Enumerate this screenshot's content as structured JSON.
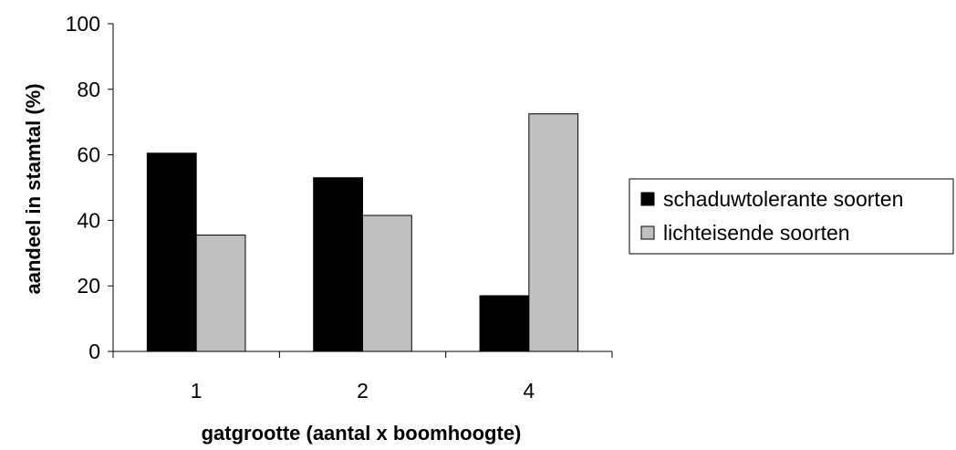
{
  "chart_data": {
    "type": "bar",
    "categories": [
      "1",
      "2",
      "4"
    ],
    "series": [
      {
        "name": "schaduwtolerante soorten",
        "values": [
          60.5,
          53,
          17
        ],
        "color": "#000000"
      },
      {
        "name": "lichteisende soorten",
        "values": [
          35.5,
          41.5,
          72.5
        ],
        "color": "#c0c0c0"
      }
    ],
    "xlabel": "gatgrootte (aantal x boomhoogte)",
    "ylabel": "aandeel in stamtal (%)",
    "ylim": [
      0,
      100
    ],
    "yticks": [
      "0",
      "20",
      "40",
      "60",
      "80",
      "100"
    ],
    "grid": false,
    "legend_position": "right"
  }
}
